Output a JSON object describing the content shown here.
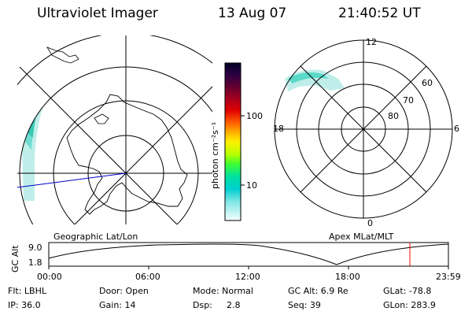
{
  "header": {
    "instrument": "Ultraviolet Imager",
    "date": "13 Aug 07",
    "time": "21:40:52 UT"
  },
  "colorbar": {
    "unit_label": "photon cm⁻²s⁻¹",
    "ticks": [
      "100",
      "10"
    ],
    "colors": [
      "#1a0033",
      "#4b0066",
      "#7a0033",
      "#b00020",
      "#e00000",
      "#ff5a00",
      "#ffaa00",
      "#ffe600",
      "#b8ff00",
      "#40ff40",
      "#00e6a0",
      "#00d0d0",
      "#80e6e6",
      "#c0f0f0",
      "#f0ffff"
    ]
  },
  "geo_panel": {
    "label": "Geographic Lat/Lon"
  },
  "apex_panel": {
    "label": "Apex MLat/MLT",
    "mlt_labels": {
      "top": "12",
      "right": "6",
      "bottom": "0",
      "left": "18"
    },
    "mlat_labels": [
      "60",
      "70",
      "80"
    ]
  },
  "altitude_plot": {
    "ylabel": "GC Alt",
    "y_ticks": [
      "9.0",
      "1.8"
    ],
    "x_ticks": [
      "00:00",
      "06:00",
      "12:00",
      "18:00",
      "23:59"
    ],
    "current_time_marker_color": "#ff0000"
  },
  "status": {
    "filter": "Flt: LBHL",
    "door": "Door: Open",
    "mode": "Mode: Normal",
    "gc_alt": "GC Alt: 6.9 Re",
    "glat": "GLat: -78.8",
    "ip": "IP: 36.0",
    "gain": "Gain: 14",
    "dsp_label": "Dsp:",
    "dsp_value": "2.8",
    "seq": "Seq: 39",
    "glon": "GLon: 283.9"
  },
  "colors": {
    "aurora_light": "#bfeeea",
    "aurora_mid": "#5ad8c8",
    "aurora_dark": "#20c0a8",
    "track_line": "#0000cc"
  }
}
